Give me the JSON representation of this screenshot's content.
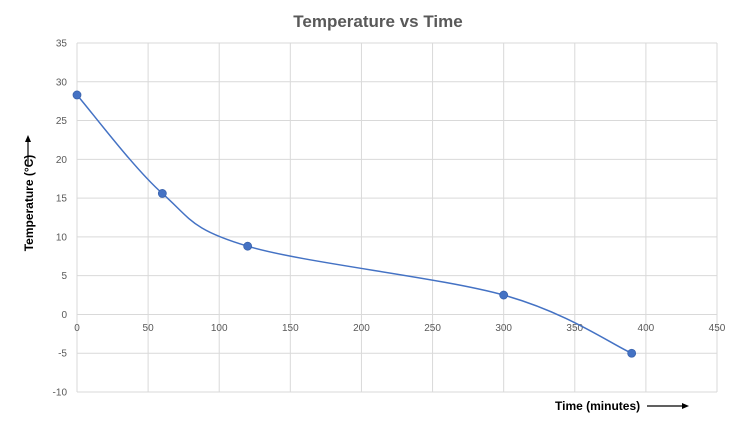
{
  "chart_data": {
    "type": "scatter",
    "title": "Temperature vs Time",
    "xlabel": "Time (minutes)",
    "ylabel": "Temperature (°C)",
    "xlim": [
      0,
      450
    ],
    "ylim": [
      -10,
      35
    ],
    "xticks": [
      "0",
      "50",
      "100",
      "150",
      "200",
      "250",
      "300",
      "350",
      "400",
      "450"
    ],
    "yticks": [
      "35",
      "30",
      "25",
      "20",
      "15",
      "10",
      "5",
      "0",
      "-5",
      "-10"
    ],
    "grid": true,
    "smoothed_line": true,
    "series": [
      {
        "x": [
          0,
          60,
          120,
          300,
          390
        ],
        "y": [
          28.3,
          15.6,
          8.8,
          2.5,
          -5.0
        ]
      }
    ],
    "colors": {
      "series": "#4472c4",
      "grid": "#d9d9d9",
      "text": "#595959"
    }
  }
}
